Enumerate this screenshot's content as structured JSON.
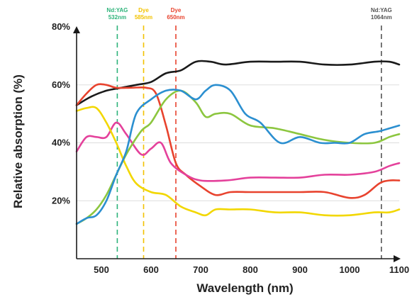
{
  "chart_data": {
    "type": "line",
    "xlabel": "Wavelength (nm)",
    "ylabel": "Relative absorption (%)",
    "xlim": [
      450,
      1100
    ],
    "ylim": [
      0,
      80
    ],
    "x_ticks": [
      500,
      600,
      700,
      800,
      900,
      1000,
      1100
    ],
    "x_tick_labels": [
      "500",
      "600",
      "700",
      "800",
      "900",
      "1000",
      "1100"
    ],
    "y_ticks": [
      20,
      40,
      60,
      80
    ],
    "y_tick_labels": [
      "20%",
      "40%",
      "60%",
      "80%"
    ],
    "grid": "horizontal",
    "markers": [
      {
        "line1": "Nd:YAG",
        "line2": "532nm",
        "x": 532,
        "color": "#2db37a"
      },
      {
        "line1": "Dye",
        "line2": "585nm",
        "x": 585,
        "color": "#f2c200"
      },
      {
        "line1": "Dye",
        "line2": "650nm",
        "x": 650,
        "color": "#e8432e"
      },
      {
        "line1": "Nd:YAG",
        "line2": "1064nm",
        "x": 1064,
        "color": "#555555"
      }
    ],
    "series": [
      {
        "color": "#1a1a1a",
        "x": [
          450,
          480,
          510,
          540,
          570,
          600,
          630,
          660,
          690,
          720,
          750,
          800,
          850,
          900,
          950,
          1000,
          1050,
          1080,
          1100
        ],
        "y": [
          53,
          56,
          58,
          59,
          60,
          61,
          64,
          65,
          68,
          68,
          67,
          68,
          68,
          68,
          67,
          67,
          68,
          68,
          67
        ]
      },
      {
        "color": "#e8432e",
        "x": [
          450,
          470,
          490,
          510,
          530,
          560,
          590,
          610,
          630,
          650,
          670,
          700,
          730,
          760,
          800,
          850,
          900,
          950,
          1000,
          1030,
          1060,
          1080,
          1100
        ],
        "y": [
          53,
          57,
          60,
          60,
          59,
          59,
          59,
          57,
          46,
          33,
          29,
          25,
          22,
          23,
          23,
          23,
          23,
          23,
          21,
          22,
          26,
          27,
          27
        ]
      },
      {
        "color": "#e4419b",
        "x": [
          450,
          470,
          490,
          510,
          530,
          550,
          580,
          600,
          620,
          640,
          670,
          700,
          750,
          800,
          850,
          900,
          950,
          1000,
          1050,
          1080,
          1100
        ],
        "y": [
          37,
          42,
          42,
          42,
          47,
          43,
          36,
          38,
          40,
          33,
          29,
          27,
          27,
          28,
          28,
          28,
          29,
          29,
          30,
          32,
          33
        ]
      },
      {
        "color": "#f2d700",
        "x": [
          450,
          470,
          490,
          510,
          530,
          550,
          570,
          600,
          630,
          660,
          690,
          710,
          730,
          760,
          800,
          850,
          900,
          950,
          1000,
          1050,
          1080,
          1100
        ],
        "y": [
          51,
          52,
          52,
          47,
          40,
          32,
          26,
          23,
          22,
          18,
          16,
          15,
          17,
          17,
          17,
          16,
          16,
          15,
          15,
          16,
          16,
          17
        ]
      },
      {
        "color": "#8cc63f",
        "x": [
          450,
          470,
          490,
          510,
          530,
          550,
          580,
          600,
          630,
          660,
          690,
          710,
          730,
          760,
          800,
          850,
          900,
          950,
          1000,
          1050,
          1080,
          1100
        ],
        "y": [
          12,
          14,
          17,
          22,
          29,
          36,
          44,
          47,
          55,
          58,
          54,
          49,
          50,
          50,
          46,
          45,
          43,
          41,
          40,
          40,
          42,
          43
        ]
      },
      {
        "color": "#2b8fd0",
        "x": [
          450,
          470,
          490,
          510,
          530,
          550,
          570,
          600,
          630,
          660,
          690,
          710,
          730,
          760,
          790,
          820,
          860,
          900,
          940,
          970,
          1000,
          1030,
          1060,
          1080,
          1100
        ],
        "y": [
          12,
          14,
          15,
          20,
          29,
          37,
          50,
          55,
          58,
          58,
          55,
          58,
          60,
          58,
          50,
          47,
          40,
          42,
          40,
          40,
          40,
          43,
          44,
          45,
          46
        ]
      }
    ]
  }
}
